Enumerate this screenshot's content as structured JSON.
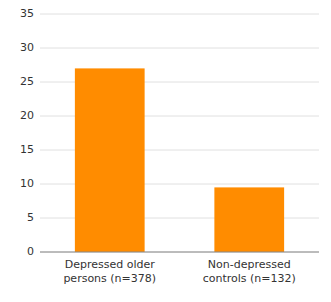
{
  "chart_data": {
    "type": "bar",
    "categories": [
      "Depressed older\npersons (n=378)",
      "Non-depressed\ncontrols (n=132)"
    ],
    "values": [
      27,
      9.5
    ],
    "color": "#FF8C00",
    "ylim": [
      0,
      35
    ],
    "yticks": [
      0,
      5,
      10,
      15,
      20,
      25,
      30,
      35
    ],
    "grid": true
  }
}
